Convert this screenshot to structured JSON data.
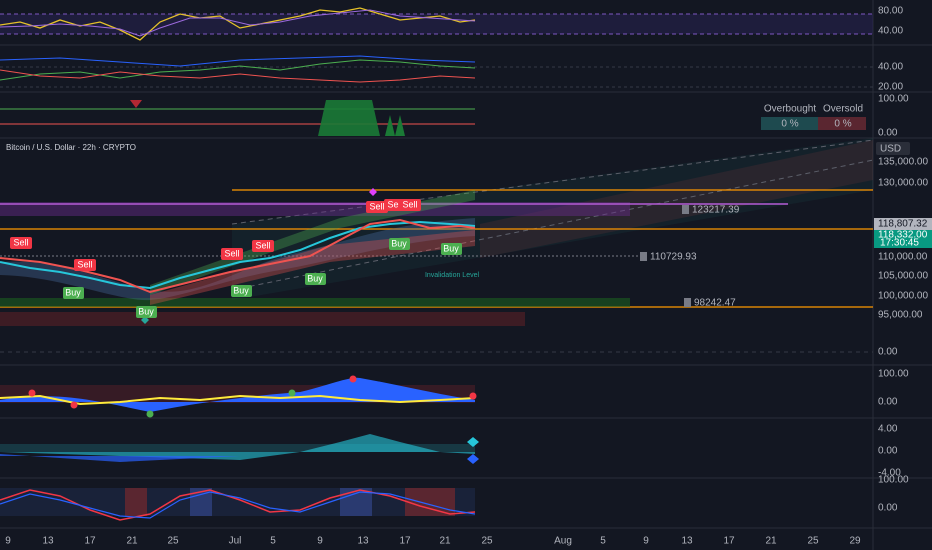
{
  "pane_rsi": {
    "axis": [
      "80.00",
      "40.00"
    ]
  },
  "pane_dmi": {
    "axis": [
      "40.00",
      "20.00"
    ]
  },
  "pane_obos": {
    "axis": [
      "100.00",
      "0.00"
    ],
    "table": {
      "headers": [
        "Overbought",
        "Oversold"
      ],
      "values": [
        "0 %",
        "0 %"
      ]
    }
  },
  "main": {
    "title": "Bitcoin / U.S. Dollar · 22h · CRYPTO",
    "currency": "USD",
    "price_axis": [
      "135,000.00",
      "130,000.00",
      "110,000.00",
      "105,000.00",
      "100,000.00",
      "95,000.00",
      "0.00"
    ],
    "last_price": "118,807.32",
    "current_price": "118,332.00",
    "countdown": "17:30:45",
    "levels": [
      "123217.39",
      "110729.93",
      "98242.47"
    ],
    "sell_signals": [
      "Sell",
      "Sell",
      "Sell",
      "Sell",
      "Sell",
      "Sell",
      "Sell"
    ],
    "buy_signals": [
      "Buy",
      "Buy",
      "Buy",
      "Buy",
      "Buy",
      "Buy"
    ],
    "annotation": "Invalidation Level"
  },
  "pane_wave": {
    "axis": [
      "100.00",
      "0.00"
    ]
  },
  "pane_mom": {
    "axis": [
      "4.00",
      "0.00",
      "-4.00"
    ]
  },
  "pane_osc": {
    "axis": [
      "100.00",
      "0.00"
    ]
  },
  "date_axis": [
    "9",
    "13",
    "17",
    "21",
    "25",
    "Jul",
    "5",
    "9",
    "13",
    "17",
    "21",
    "25",
    "Aug",
    "5",
    "9",
    "13",
    "17",
    "21",
    "25",
    "29"
  ]
}
